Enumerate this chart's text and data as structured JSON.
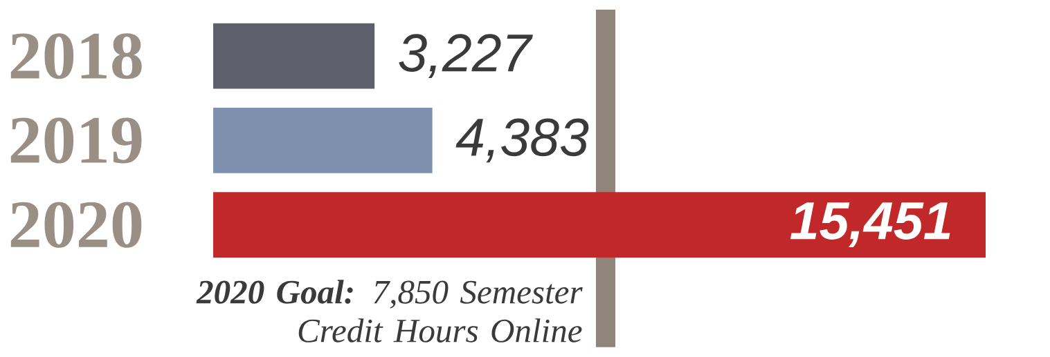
{
  "chart_data": {
    "type": "bar",
    "orientation": "horizontal",
    "categories": [
      "2018",
      "2019",
      "2020"
    ],
    "values": [
      3227,
      4383,
      15451
    ],
    "colors": [
      "#5f5e6b",
      "#7f8fae",
      "#c0282a"
    ],
    "data_labels": true,
    "value_labels": [
      "3,227",
      "4,383",
      "15,451"
    ],
    "ref_lines": [
      {
        "axis": "x",
        "value": 7850,
        "label": "**2020 Goal:** 7,850 Semester Credit Hours Online",
        "color": "#8f857b"
      }
    ]
  }
}
